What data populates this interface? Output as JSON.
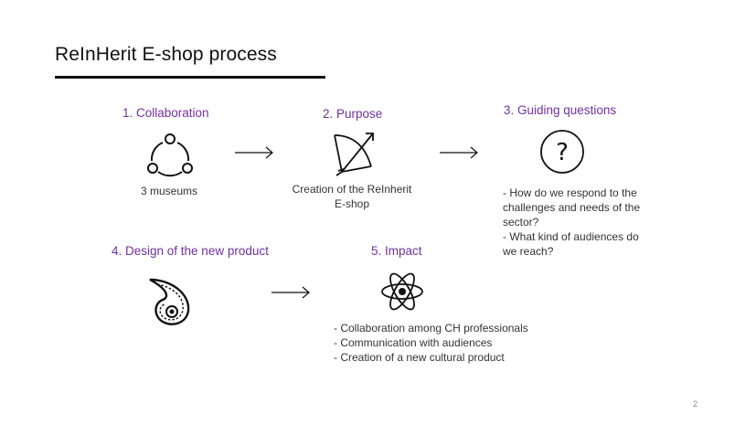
{
  "title": "ReInHerit E-shop process",
  "steps": [
    {
      "title": "1. Collaboration",
      "caption": "3 museums",
      "icon": "cycle-icon"
    },
    {
      "title": "2. Purpose",
      "caption_lines": [
        "Creation of the ReInherit",
        "E-shop"
      ],
      "icon": "bow-arrow-icon"
    },
    {
      "title": "3. Guiding questions",
      "caption_lines": [
        "- How do we respond to the",
        "challenges and needs of the",
        "sector?",
        "- What kind of audiences do",
        "we reach?"
      ],
      "icon": "question-mark-icon"
    },
    {
      "title": "4. Design of the new product",
      "icon": "paisley-icon"
    },
    {
      "title": "5. Impact",
      "items": [
        "- Collaboration among CH professionals",
        "- Communication with audiences",
        "- Creation of a new cultural product"
      ],
      "icon": "atom-icon"
    }
  ],
  "page_number": "2",
  "colors": {
    "accent": "#7030a0",
    "text": "#222222",
    "rule": "#111111"
  }
}
